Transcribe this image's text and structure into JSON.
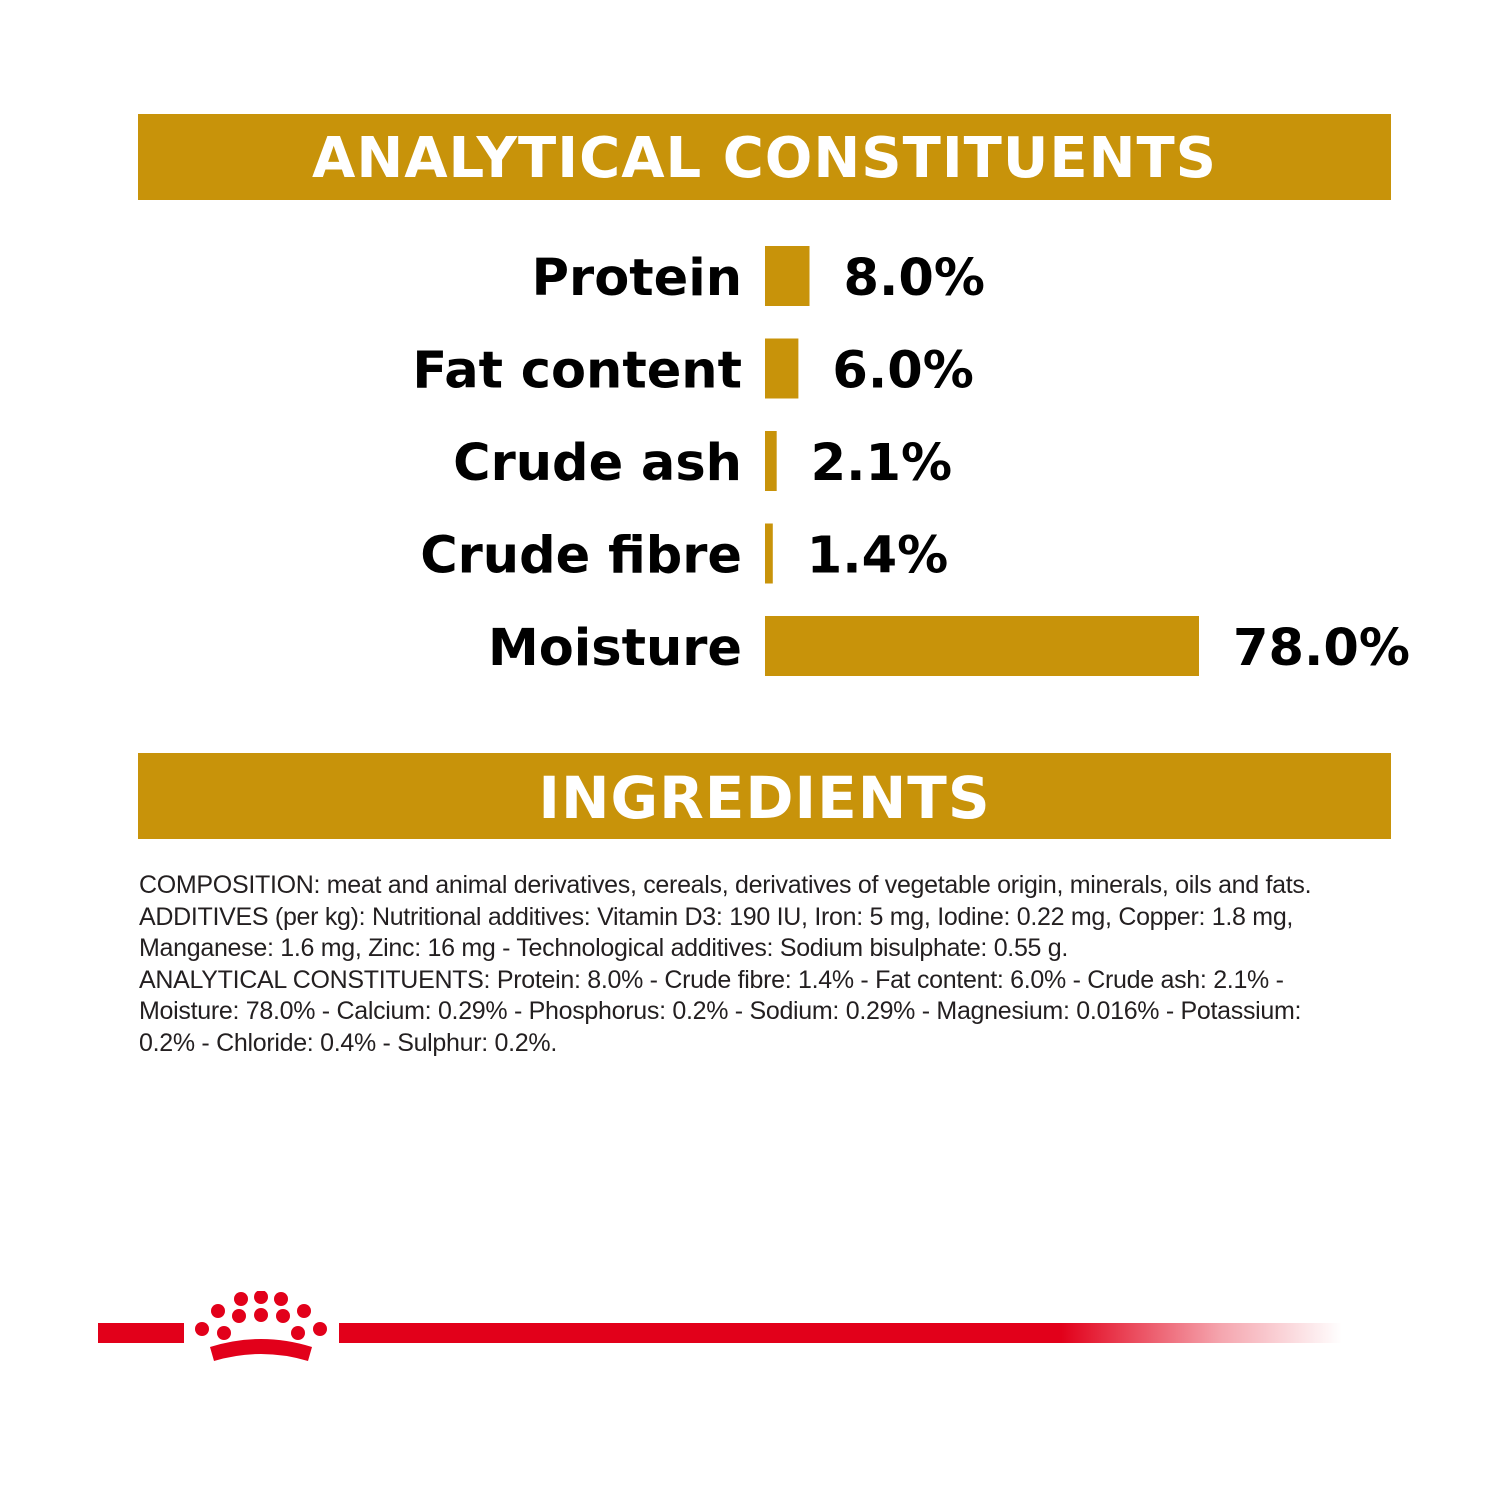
{
  "analytical_heading": "ANALYTICAL CONSTITUENTS",
  "ingredients_heading": "INGREDIENTS",
  "colors": {
    "bar": "#C8930A",
    "banner": "#C8930A",
    "brand_red": "#E2001A",
    "text": "#000000"
  },
  "chart_data": {
    "type": "bar",
    "orientation": "horizontal",
    "categories": [
      "Protein",
      "Fat content",
      "Crude ash",
      "Crude fibre",
      "Moisture"
    ],
    "values": [
      8.0,
      6.0,
      2.1,
      1.4,
      78.0
    ],
    "value_labels": [
      "8.0%",
      "6.0%",
      "2.1%",
      "1.4%",
      "78.0%"
    ],
    "title": "ANALYTICAL CONSTITUENTS",
    "xlabel": "",
    "ylabel": "",
    "xlim": [
      0,
      78.0
    ],
    "grid": false,
    "legend": "none"
  },
  "composition_lines": [
    "COMPOSITION: meat and animal derivatives, cereals, derivatives of vegetable origin, minerals, oils and fats.",
    "ADDITIVES (per kg): Nutritional additives: Vitamin D3: 190 IU, Iron: 5 mg, Iodine: 0.22 mg, Copper: 1.8 mg, Manganese: 1.6 mg, Zinc: 16 mg - Technological additives: Sodium bisulphate: 0.55 g.",
    "ANALYTICAL CONSTITUENTS: Protein: 8.0% - Crude fibre: 1.4% - Fat content: 6.0% - Crude ash: 2.1% - Moisture: 78.0% - Calcium: 0.29% - Phosphorus: 0.2% - Sodium: 0.29% - Magnesium: 0.016% - Potassium: 0.2% - Chloride: 0.4% - Sulphur: 0.2%."
  ],
  "footer": {
    "logo_icon": "crown-icon"
  }
}
